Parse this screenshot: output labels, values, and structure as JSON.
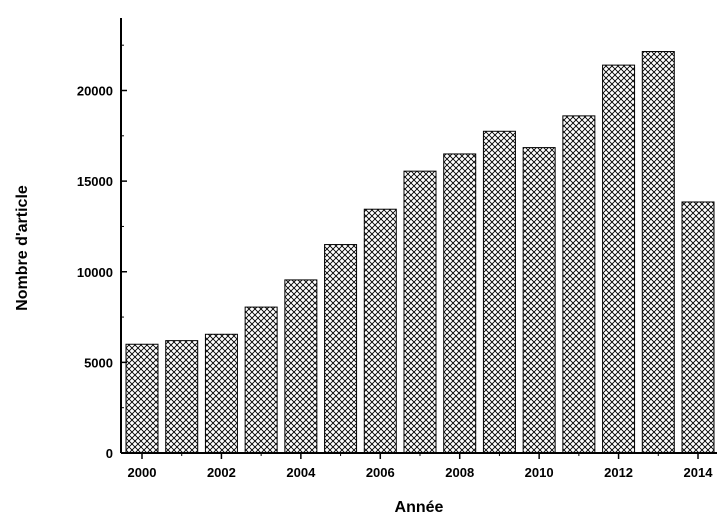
{
  "chart_data": {
    "type": "bar",
    "xlabel": "Année",
    "ylabel": "Nombre d'article",
    "categories": [
      "2000",
      "2001",
      "2002",
      "2003",
      "2004",
      "2005",
      "2006",
      "2007",
      "2008",
      "2009",
      "2010",
      "2011",
      "2012",
      "2013",
      "2014"
    ],
    "values": [
      6000,
      6200,
      6550,
      8050,
      9550,
      11500,
      13450,
      15550,
      16500,
      17750,
      16850,
      18600,
      21400,
      22150,
      13850
    ],
    "ylim": [
      0,
      24000
    ],
    "y_ticks": [
      0,
      5000,
      10000,
      15000,
      20000
    ],
    "x_tick_labels": [
      "2000",
      "2002",
      "2004",
      "2006",
      "2008",
      "2010",
      "2012",
      "2014"
    ],
    "bar_fill": "crosshatch",
    "colors": {
      "bar_stroke": "#000000",
      "background": "#ffffff"
    },
    "grid": false,
    "legend": "none"
  }
}
